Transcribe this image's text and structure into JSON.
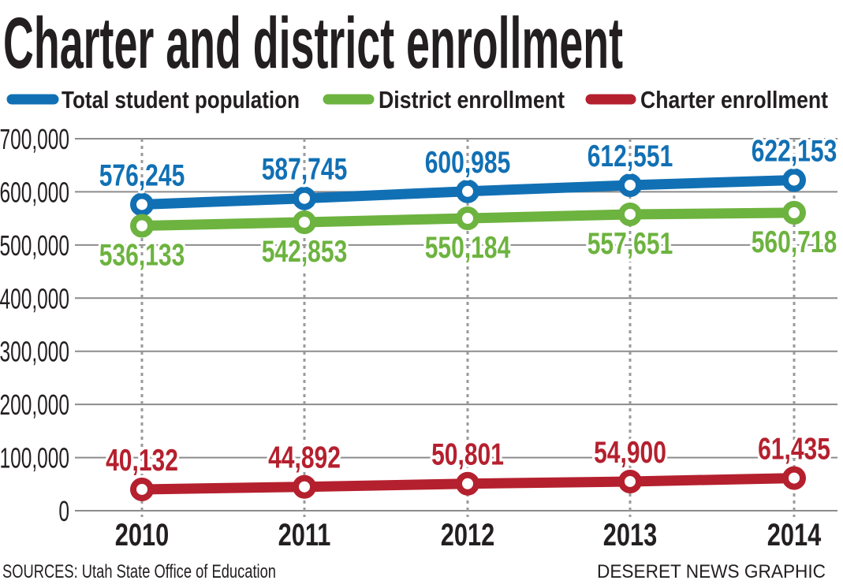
{
  "chart_data": {
    "type": "line",
    "title": "Charter and district enrollment",
    "categories": [
      "2010",
      "2011",
      "2012",
      "2013",
      "2014"
    ],
    "series": [
      {
        "name": "Total student population",
        "color": "#1170b4",
        "values": [
          576245,
          587745,
          600985,
          612551,
          622153
        ],
        "labels": [
          "576,245",
          "587,745",
          "600,985",
          "612,551",
          "622,153"
        ],
        "label_position": "above"
      },
      {
        "name": "District enrollment",
        "color": "#6db33f",
        "values": [
          536133,
          542853,
          550184,
          557651,
          560718
        ],
        "labels": [
          "536,133",
          "542,853",
          "550,184",
          "557,651",
          "560,718"
        ],
        "label_position": "below"
      },
      {
        "name": "Charter enrollment",
        "color": "#b5202e",
        "values": [
          40132,
          44892,
          50801,
          54900,
          61435
        ],
        "labels": [
          "40,132",
          "44,892",
          "50,801",
          "54,900",
          "61,435"
        ],
        "label_position": "above"
      }
    ],
    "yticks": [
      0,
      100000,
      200000,
      300000,
      400000,
      500000,
      600000,
      700000
    ],
    "ytick_labels": [
      "0",
      "100,000",
      "200,000",
      "300,000",
      "400,000",
      "500,000",
      "600,000",
      "700,000"
    ],
    "ylim": [
      0,
      700000
    ],
    "xlabel": "",
    "ylabel": "",
    "grid": "horizontal solid, vertical dotted at each year",
    "legend_placement": "top"
  },
  "source": "SOURCES: Utah State Office of Education",
  "credit": "DESERET NEWS GRAPHIC"
}
